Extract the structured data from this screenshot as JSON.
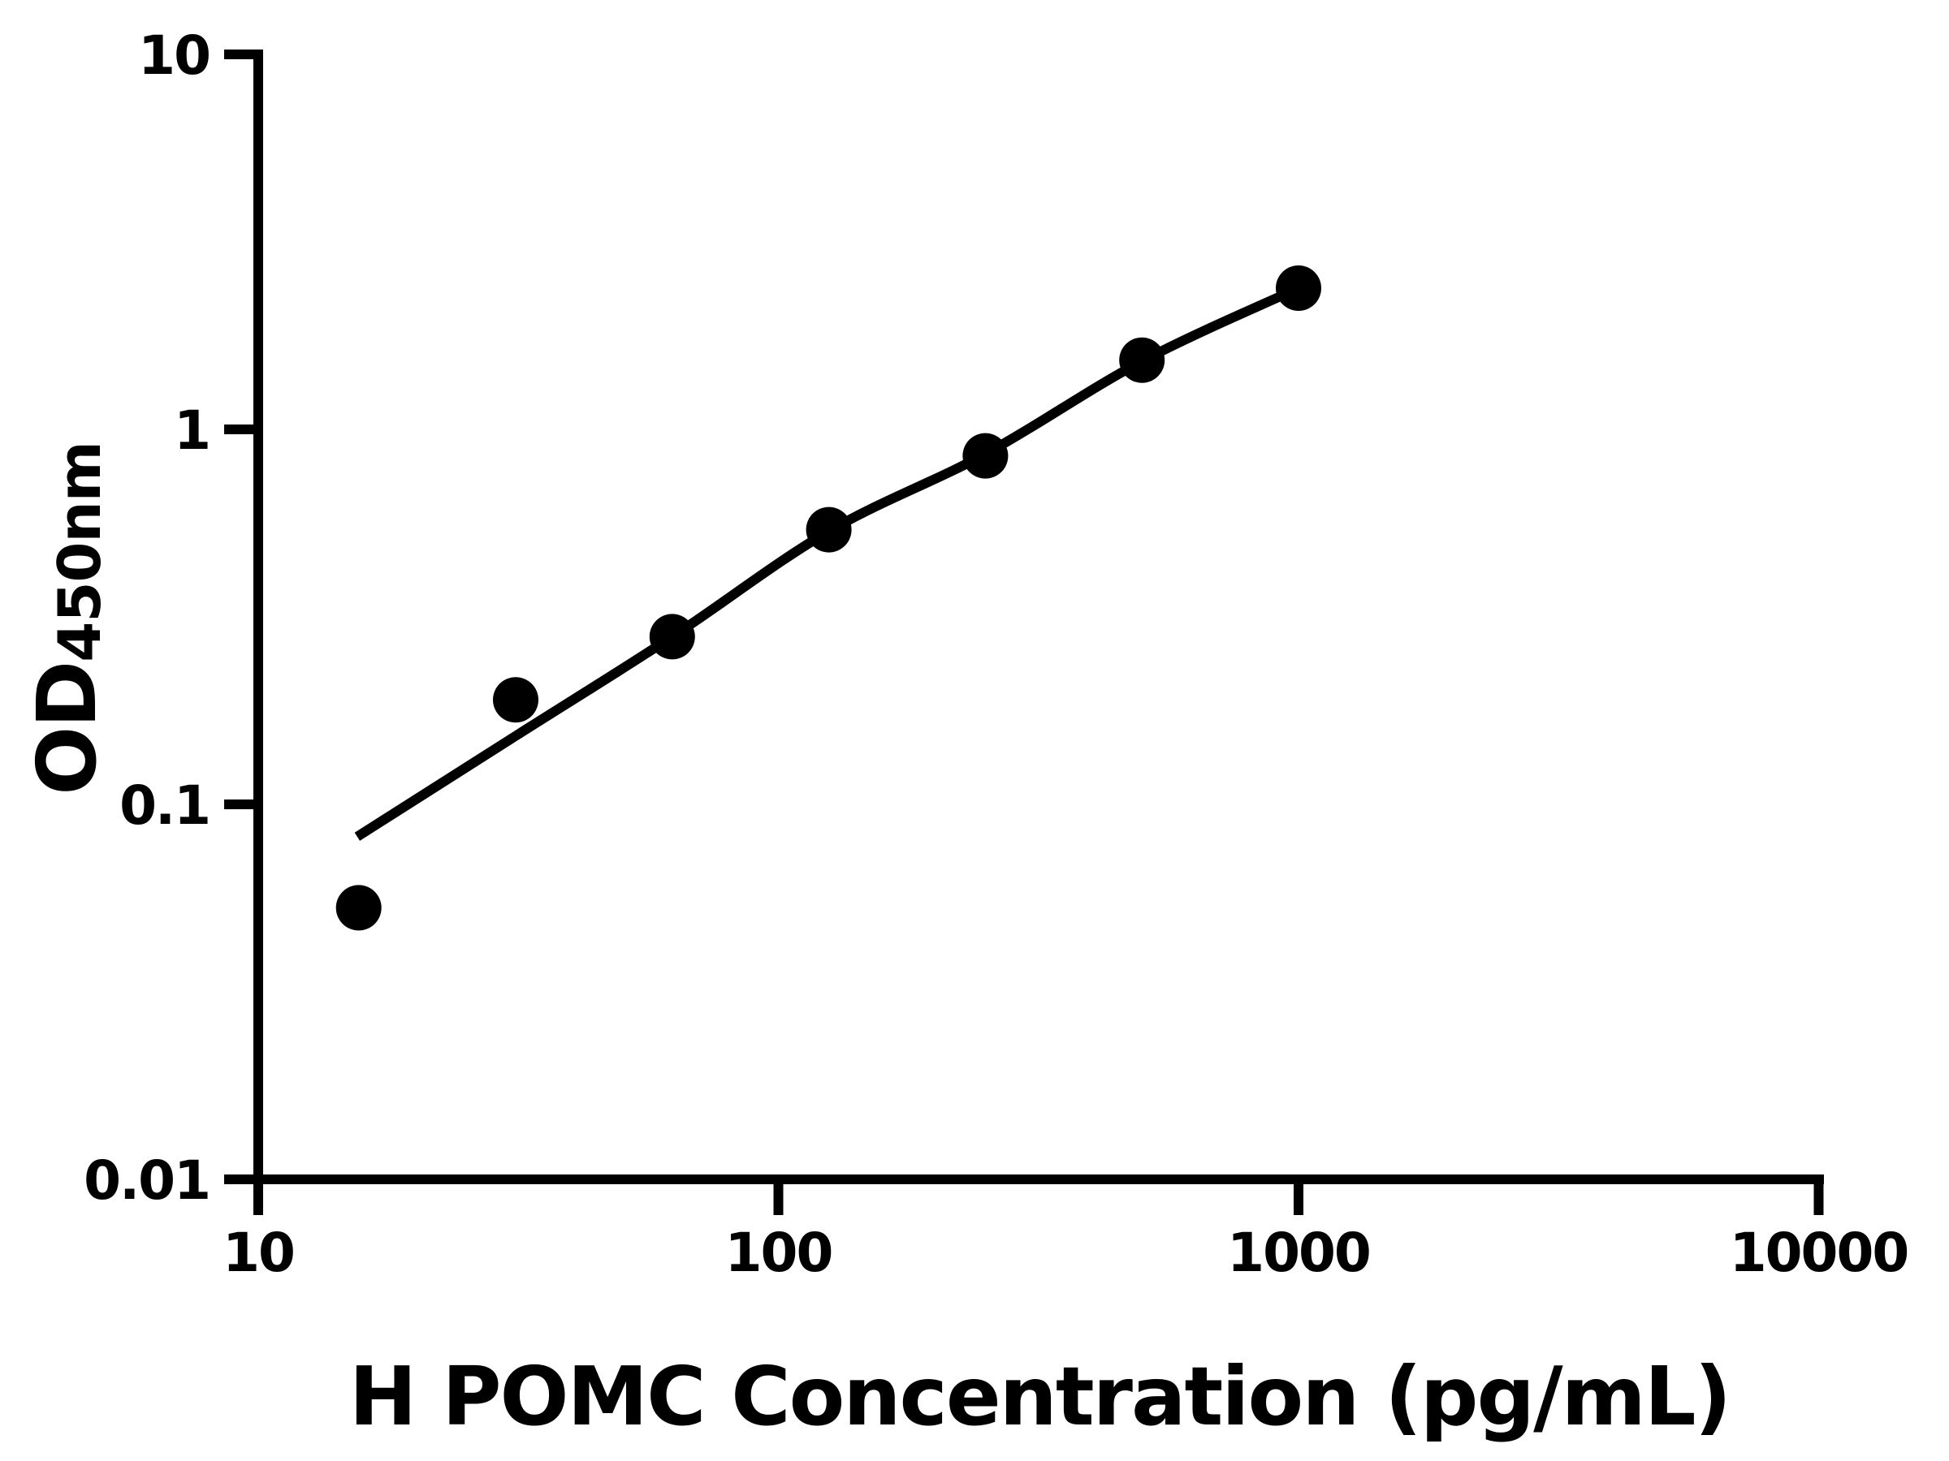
{
  "chart_data": {
    "type": "scatter",
    "title": "",
    "xlabel": "H POMC Concentration (pg/mL)",
    "ylabel": "OD450nm",
    "ylabel_main": "OD",
    "ylabel_sub": "450nm",
    "x_scale": "log",
    "y_scale": "log",
    "xlim": [
      10,
      10000
    ],
    "ylim": [
      0.01,
      10
    ],
    "x_ticks": [
      10,
      100,
      1000,
      10000
    ],
    "x_tick_labels": [
      "10",
      "100",
      "1000",
      "10000"
    ],
    "y_ticks": [
      10,
      1,
      0.1,
      0.01
    ],
    "y_tick_labels": [
      "10",
      "1",
      "0.1",
      "0.01"
    ],
    "grid": false,
    "legend": null,
    "colors": {
      "background": "#ffffff",
      "axis": "#000000",
      "marker": "#000000",
      "line": "#000000"
    },
    "series": [
      {
        "name": "standard-points",
        "kind": "scatter",
        "marker": "filled-circle",
        "points": [
          {
            "x": 15.6,
            "y": 0.053
          },
          {
            "x": 31.25,
            "y": 0.19
          },
          {
            "x": 62.5,
            "y": 0.28
          },
          {
            "x": 125,
            "y": 0.54
          },
          {
            "x": 250,
            "y": 0.85
          },
          {
            "x": 500,
            "y": 1.53
          },
          {
            "x": 1000,
            "y": 2.38
          }
        ]
      },
      {
        "name": "fit-line",
        "kind": "line",
        "points": [
          {
            "x": 15.5,
            "y": 0.082
          },
          {
            "x": 31.2,
            "y": 0.152
          },
          {
            "x": 62.5,
            "y": 0.28
          },
          {
            "x": 125,
            "y": 0.535
          },
          {
            "x": 250,
            "y": 0.86
          },
          {
            "x": 500,
            "y": 1.52
          },
          {
            "x": 1000,
            "y": 2.38
          }
        ]
      }
    ]
  }
}
